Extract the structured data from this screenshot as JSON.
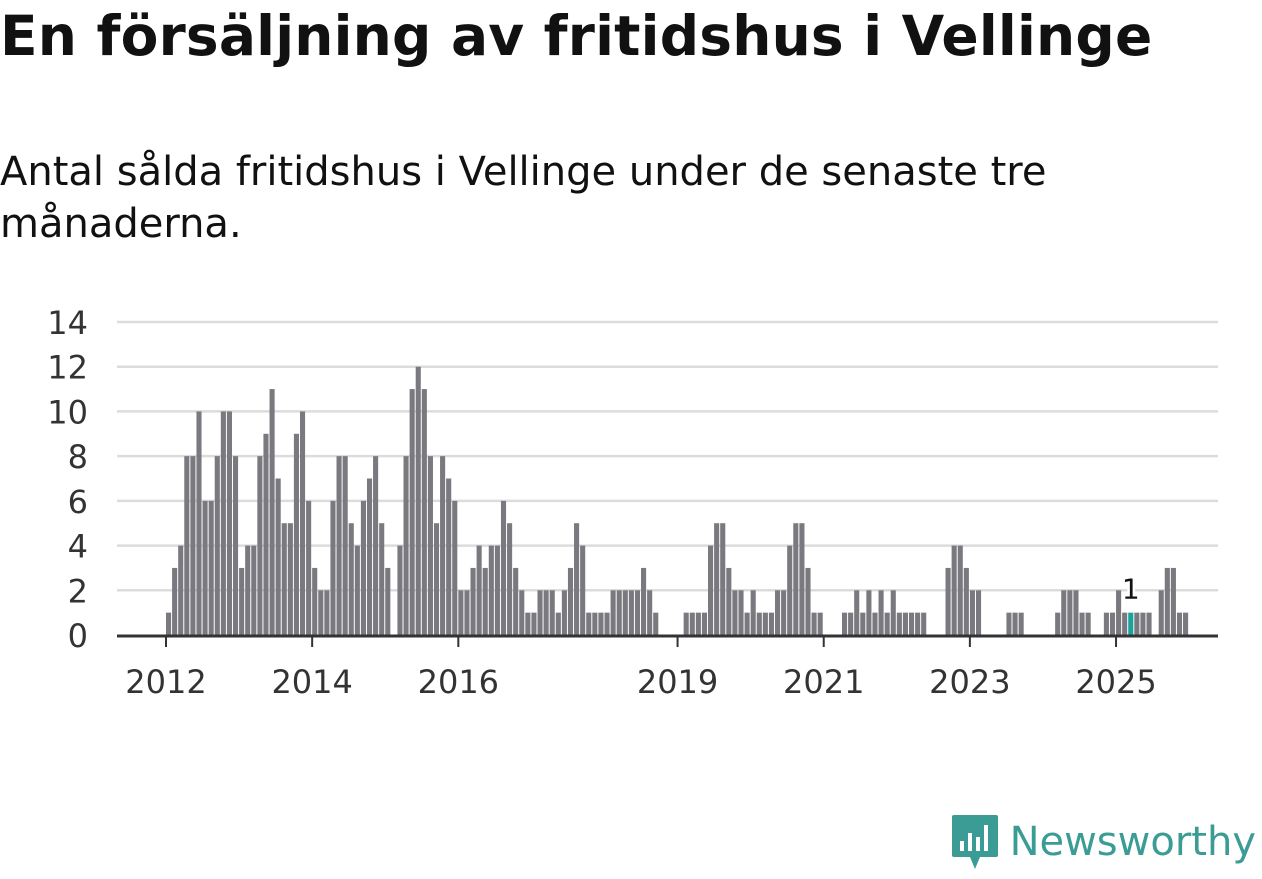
{
  "title": "En försäljning av fritidshus i Vellinge",
  "subtitle": "Antal sålda fritidshus i Vellinge under de senaste tre månaderna.",
  "brand": {
    "name": "Newsworthy",
    "icon": "newsworthy-logo-icon",
    "color": "#3b9c95"
  },
  "colors": {
    "bar": "#7a797f",
    "highlight": "#1aa39b",
    "grid": "#dcdcdc",
    "axis": "#333333",
    "text": "#333333"
  },
  "chart_data": {
    "type": "bar",
    "title": "Antal sålda fritidshus i Vellinge",
    "xlabel": "",
    "ylabel": "",
    "ylim": [
      0,
      14
    ],
    "yticks": [
      0,
      2,
      4,
      6,
      8,
      10,
      12,
      14
    ],
    "start": "2012-01",
    "period": "month",
    "xtick_labels": [
      "2012",
      "2014",
      "2016",
      "2019",
      "2021",
      "2023",
      "2025"
    ],
    "xtick_positions": [
      0,
      24,
      48,
      84,
      108,
      132,
      156
    ],
    "values": [
      1,
      3,
      4,
      8,
      8,
      10,
      6,
      6,
      8,
      10,
      10,
      8,
      3,
      4,
      4,
      8,
      9,
      11,
      7,
      5,
      5,
      9,
      10,
      6,
      3,
      2,
      2,
      6,
      8,
      8,
      5,
      4,
      6,
      7,
      8,
      5,
      3,
      0,
      4,
      8,
      11,
      12,
      11,
      8,
      5,
      8,
      7,
      6,
      2,
      2,
      3,
      4,
      3,
      4,
      4,
      6,
      5,
      3,
      2,
      1,
      1,
      2,
      2,
      2,
      1,
      2,
      3,
      5,
      4,
      1,
      1,
      1,
      1,
      2,
      2,
      2,
      2,
      2,
      3,
      2,
      1,
      0,
      0,
      0,
      0,
      1,
      1,
      1,
      1,
      4,
      5,
      5,
      3,
      2,
      2,
      1,
      2,
      1,
      1,
      1,
      2,
      2,
      4,
      5,
      5,
      3,
      1,
      1,
      0,
      0,
      0,
      1,
      1,
      2,
      1,
      2,
      1,
      2,
      1,
      2,
      1,
      1,
      1,
      1,
      1,
      0,
      0,
      0,
      3,
      4,
      4,
      3,
      2,
      2,
      0,
      0,
      0,
      0,
      1,
      1,
      1,
      0,
      0,
      0,
      0,
      0,
      1,
      2,
      2,
      2,
      1,
      1,
      0,
      0,
      1,
      1,
      2,
      1,
      1,
      1,
      1,
      1,
      0,
      2,
      3,
      3,
      1,
      1
    ],
    "highlight_index": 158,
    "annotation": {
      "index": 158,
      "text": "1"
    }
  }
}
